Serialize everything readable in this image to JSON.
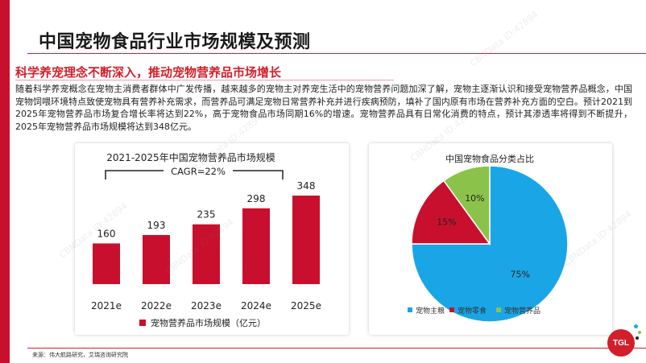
{
  "page": {
    "title": "中国宠物食品行业市场规模及预测",
    "subtitle": "科学养宠理念不断深入，推动宠物营养品市场增长",
    "body": "随着科学养宠概念在宠物主消费者群体中广发传播，越来越多的宠物主对养宠生活中的宠物营养问题加深了解，宠物主逐渐认识和接受宠物营养品概念，中国宠物饲喂环境特点致使宠物具有营养补充需求，而营养品可满足宠物日常营养补充并进行疾病预防，填补了国内原有市场在营养补充方面的空白。预计2021到2025年宠物营养品市场复合增长率将达到22%，高于宠物食品市场同期16%的增速。宠物营养品具有日常化消费的特点，预计其渗透率将得到不断提升，2025年宠物营养品市场规模将达到348亿元。",
    "source": "来源：伟大航路研究，艾瑞咨询研究院",
    "watermark": "CBNData ID:42894",
    "logo": "TGL",
    "colors": {
      "accent": "#d31f2b",
      "bar": "#c8102e",
      "pie_blue": "#1aa6e6",
      "pie_red": "#c8102e",
      "pie_green": "#8bc34a"
    }
  },
  "chart_data": [
    {
      "type": "bar",
      "title": "2021-2025年中国宠物营养品市场规模",
      "annotation": "CAGR=22%",
      "categories": [
        "2021e",
        "2022e",
        "2023e",
        "2024e",
        "2025e"
      ],
      "series": [
        {
          "name": "宠物营养品市场规模（亿元）",
          "values": [
            160,
            193,
            235,
            298,
            348
          ]
        }
      ],
      "ylim": [
        0,
        348
      ],
      "legend": "bottom"
    },
    {
      "type": "pie",
      "title": "中国宠物食品分类占比",
      "labels": [
        "宠物主粮",
        "宠物零食",
        "宠物营养品"
      ],
      "values": [
        75,
        15,
        10
      ],
      "value_labels": [
        "75%",
        "15%",
        "10%"
      ],
      "colors": [
        "#1aa6e6",
        "#c8102e",
        "#8bc34a"
      ],
      "legend": "bottom"
    }
  ]
}
